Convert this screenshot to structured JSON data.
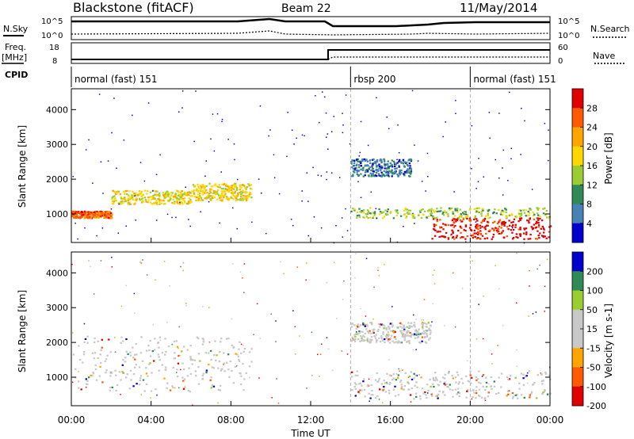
{
  "header": {
    "station": "Blackstone (fitACF)",
    "beam": "Beam 22",
    "date": "11/May/2014"
  },
  "strip_labels": {
    "nsky": "N.Sky",
    "nsearch": "N.Search",
    "freq_top": "Freq.",
    "freq_unit": "[MHz]",
    "nave": "Nave",
    "cpid": "CPID",
    "nsky_ticks": [
      "10^5",
      "10^0"
    ],
    "nsearch_ticks": [
      "10^5",
      "10^0"
    ],
    "freq_ticks": [
      "18",
      "8"
    ],
    "nave_ticks": [
      "60",
      "0"
    ]
  },
  "cpid_segments": [
    {
      "label": "normal (fast) 151",
      "start": 0,
      "end": 14
    },
    {
      "label": "rbsp 200",
      "start": 14,
      "end": 20
    },
    {
      "label": "normal (fast) 151",
      "start": 20,
      "end": 24
    }
  ],
  "x_axis": {
    "label": "Time UT",
    "ticks": [
      "00:00",
      "04:00",
      "08:00",
      "12:00",
      "16:00",
      "20:00",
      "00:00"
    ],
    "range_hours": [
      0,
      24
    ]
  },
  "chart_data": [
    {
      "type": "heatmap",
      "title": "Power",
      "ylabel": "Slant Range [km]",
      "ylim": [
        180,
        4600
      ],
      "yticks": [
        1000,
        2000,
        3000,
        4000
      ],
      "colorbar": {
        "label": "Power [dB]",
        "ticks": [
          "28",
          "24",
          "20",
          "16",
          "12",
          "8",
          "4"
        ],
        "colors": [
          "#e00000",
          "#ff5a00",
          "#ffa500",
          "#ffd700",
          "#9acd32",
          "#2e8b57",
          "#4682b4",
          "#0000cd"
        ]
      },
      "bands": [
        {
          "t0": 0,
          "t1": 2,
          "r0": 900,
          "r1": 1100,
          "level": 6
        },
        {
          "t0": 2,
          "t1": 6,
          "r0": 1300,
          "r1": 1700,
          "level": 4
        },
        {
          "t0": 6,
          "t1": 9,
          "r0": 1400,
          "r1": 1900,
          "level": 4
        },
        {
          "t0": 14,
          "t1": 24,
          "r0": 900,
          "r1": 1200,
          "level": 3
        },
        {
          "t0": 18,
          "t1": 24,
          "r0": 300,
          "r1": 900,
          "level": 7
        },
        {
          "t0": 14,
          "t1": 17,
          "r0": 2100,
          "r1": 2600,
          "level": 1
        }
      ]
    },
    {
      "type": "heatmap",
      "title": "Velocity",
      "ylabel": "Slant Range [km]",
      "ylim": [
        180,
        4600
      ],
      "yticks": [
        1000,
        2000,
        3000,
        4000
      ],
      "colorbar": {
        "label": "Velocity [m s-1]",
        "ticks": [
          "200",
          "100",
          "50",
          "15",
          "-15",
          "-50",
          "-100",
          "-200"
        ],
        "colors": [
          "#0000cd",
          "#2e8b57",
          "#9acd32",
          "#c8c8c8",
          "#c8c8c8",
          "#ffa500",
          "#ff5a00",
          "#e00000"
        ]
      },
      "bands": [
        {
          "t0": 0,
          "t1": 9,
          "r0": 600,
          "r1": 2200,
          "level": 3
        },
        {
          "t0": 14,
          "t1": 24,
          "r0": 400,
          "r1": 1200,
          "level": 3
        },
        {
          "t0": 14,
          "t1": 18,
          "r0": 2000,
          "r1": 2600,
          "level": 3
        }
      ]
    }
  ]
}
